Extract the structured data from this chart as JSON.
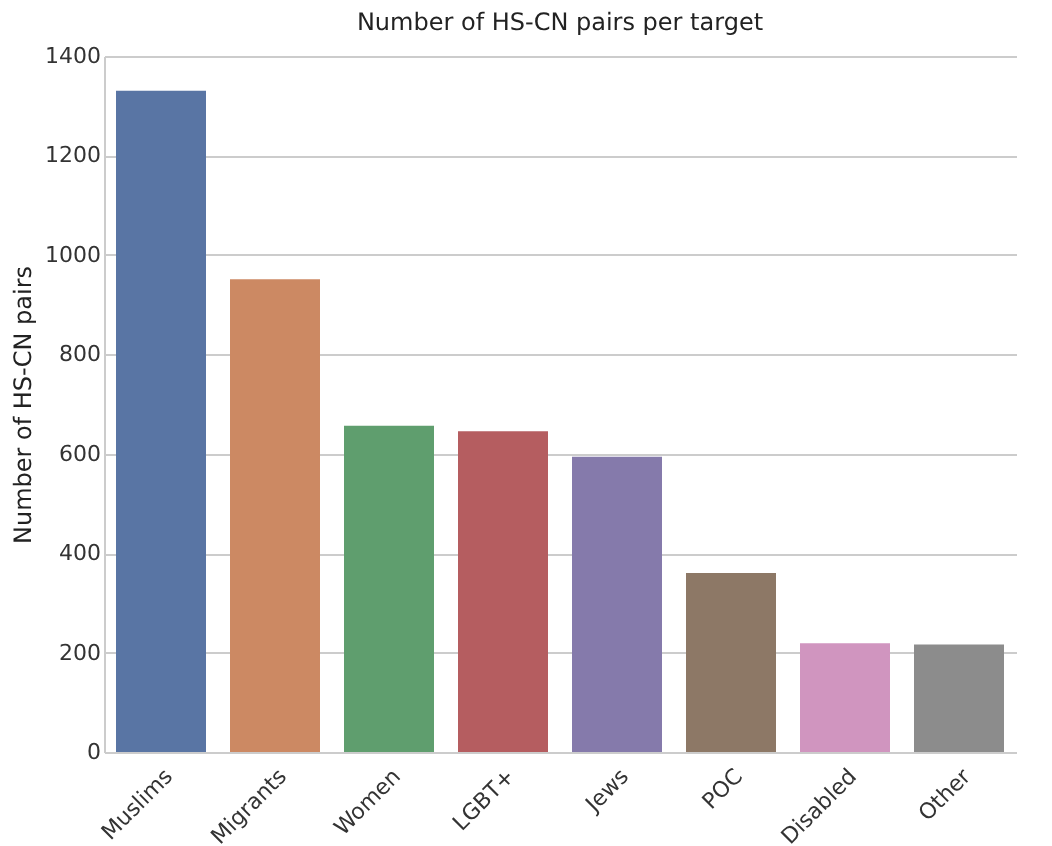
{
  "chart_data": {
    "type": "bar",
    "title": "Number of HS-CN pairs per target",
    "ylabel": "Number of HS-CN pairs",
    "categories": [
      "Muslims",
      "Migrants",
      "Women",
      "LGBT+",
      "Jews",
      "POC",
      "Disabled",
      "Other"
    ],
    "values": [
      1330,
      951,
      656,
      645,
      594,
      360,
      219,
      216
    ],
    "colors": [
      "#5975a4",
      "#cc8963",
      "#5f9e6e",
      "#b55d60",
      "#857aab",
      "#8d7866",
      "#d095bf",
      "#8c8c8c"
    ],
    "ylim": [
      0,
      1400
    ],
    "yticks": [
      0,
      200,
      400,
      600,
      800,
      1000,
      1200,
      1400
    ],
    "grid": "y",
    "legend": false
  }
}
